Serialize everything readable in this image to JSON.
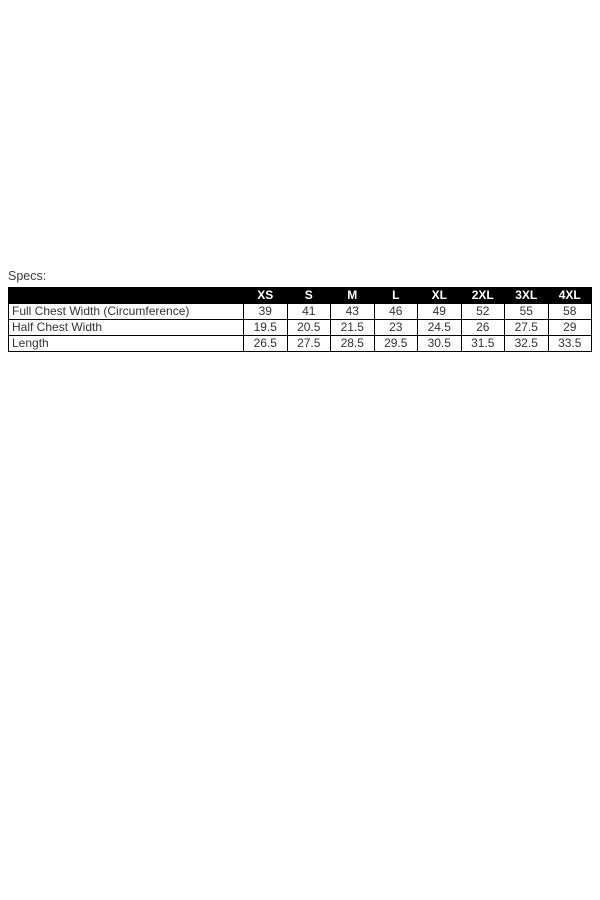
{
  "specs": {
    "label": "Specs:",
    "sizes": [
      "XS",
      "S",
      "M",
      "L",
      "XL",
      "2XL",
      "3XL",
      "4XL"
    ],
    "rows": [
      {
        "label": "Full Chest Width (Circumference)",
        "values": [
          "39",
          "41",
          "43",
          "46",
          "49",
          "52",
          "55",
          "58"
        ]
      },
      {
        "label": "Half Chest Width",
        "values": [
          "19.5",
          "20.5",
          "21.5",
          "23",
          "24.5",
          "26",
          "27.5",
          "29"
        ]
      },
      {
        "label": "Length",
        "values": [
          "26.5",
          "27.5",
          "28.5",
          "29.5",
          "30.5",
          "31.5",
          "32.5",
          "33.5"
        ]
      }
    ],
    "colors": {
      "page_bg": "#ffffff",
      "header_bg": "#000000",
      "header_text": "#ffffff",
      "body_text": "#333333",
      "border": "#000000"
    }
  }
}
